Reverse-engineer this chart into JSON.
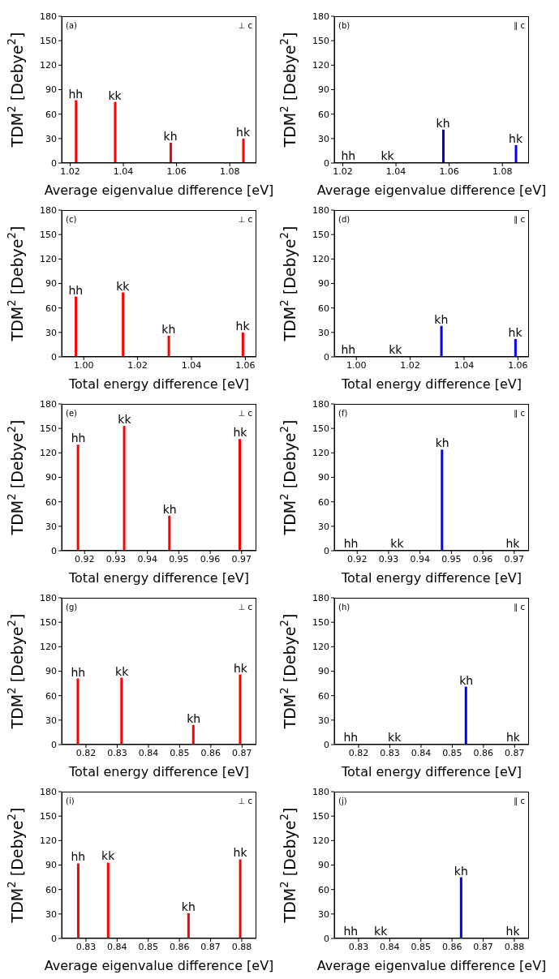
{
  "chart_data": [
    {
      "type": "bar",
      "x": [
        1.0221,
        1.0368,
        1.0577,
        1.085
      ],
      "values": [
        77,
        75,
        25,
        30
      ],
      "color": "#ff0000",
      "xlim": [
        1.0168,
        1.09
      ],
      "xticks": [
        {
          "value": 1.02,
          "label": "1.02"
        },
        {
          "value": 1.04,
          "label": "1.04"
        },
        {
          "value": 1.06,
          "label": "1.06"
        },
        {
          "value": 1.08,
          "label": "1.08"
        }
      ],
      "ylim": [
        0,
        180
      ],
      "yticks": [
        0,
        30,
        60,
        90,
        120,
        150,
        180
      ],
      "xlabel": "Average eigenvalue difference [eV]",
      "ylabel": "TDM$^{2}$ [Debye$^{2}$]",
      "annotations": [
        "(a)",
        "⊥ c",
        {
          "text": "hh",
          "x": 1.0221,
          "y": 77
        },
        {
          "text": "kk",
          "x": 1.0368,
          "y": 75
        },
        {
          "text": "kh",
          "x": 1.0577,
          "y": 25
        },
        {
          "text": "hk",
          "x": 1.085,
          "y": 30
        }
      ]
    },
    {
      "type": "bar",
      "x": [
        1.0221,
        1.0368,
        1.0577,
        1.085
      ],
      "values": [
        1,
        1,
        41,
        22
      ],
      "color": "#0000ff",
      "xlim": [
        1.0168,
        1.09
      ],
      "xticks": [
        {
          "value": 1.02,
          "label": "1.02"
        },
        {
          "value": 1.04,
          "label": "1.04"
        },
        {
          "value": 1.06,
          "label": "1.06"
        },
        {
          "value": 1.08,
          "label": "1.08"
        }
      ],
      "ylim": [
        0,
        180
      ],
      "yticks": [
        0,
        30,
        60,
        90,
        120,
        150,
        180
      ],
      "xlabel": "Average eigenvalue difference [eV]",
      "ylabel": "TDM$^{2}$ [Debye$^{2}$]",
      "annotations": [
        "(b)",
        "∥ c",
        {
          "text": "hh",
          "x": 1.0221,
          "y": 1
        },
        {
          "text": "kk",
          "x": 1.0368,
          "y": 1
        },
        {
          "text": "kh",
          "x": 1.0577,
          "y": 41
        },
        {
          "text": "hk",
          "x": 1.085,
          "y": 22
        }
      ]
    },
    {
      "type": "bar",
      "x": [
        0.997,
        1.0145,
        1.0315,
        1.059
      ],
      "values": [
        74,
        79,
        26,
        30
      ],
      "color": "#ff0000",
      "xlim": [
        0.9918,
        1.0641
      ],
      "xticks": [
        {
          "value": 1.0,
          "label": "1.00"
        },
        {
          "value": 1.02,
          "label": "1.02"
        },
        {
          "value": 1.04,
          "label": "1.04"
        },
        {
          "value": 1.06,
          "label": "1.06"
        }
      ],
      "ylim": [
        0,
        180
      ],
      "yticks": [
        0,
        30,
        60,
        90,
        120,
        150,
        180
      ],
      "xlabel": "Total energy difference [eV]",
      "ylabel": "TDM$^{2}$ [Debye$^{2}$]",
      "annotations": [
        "(c)",
        "⊥ c",
        {
          "text": "hh",
          "x": 0.997,
          "y": 74
        },
        {
          "text": "kk",
          "x": 1.0145,
          "y": 79
        },
        {
          "text": "kh",
          "x": 1.0315,
          "y": 26
        },
        {
          "text": "hk",
          "x": 1.059,
          "y": 30
        }
      ]
    },
    {
      "type": "bar",
      "x": [
        0.997,
        1.0145,
        1.0315,
        1.059
      ],
      "values": [
        1,
        1,
        38,
        22
      ],
      "color": "#0000ff",
      "xlim": [
        0.9918,
        1.0641
      ],
      "xticks": [
        {
          "value": 1.0,
          "label": "1.00"
        },
        {
          "value": 1.02,
          "label": "1.02"
        },
        {
          "value": 1.04,
          "label": "1.04"
        },
        {
          "value": 1.06,
          "label": "1.06"
        }
      ],
      "ylim": [
        0,
        180
      ],
      "yticks": [
        0,
        30,
        60,
        90,
        120,
        150,
        180
      ],
      "xlabel": "Total energy difference [eV]",
      "ylabel": "TDM$^{2}$ [Debye$^{2}$]",
      "annotations": [
        "(d)",
        "∥ c",
        {
          "text": "hh",
          "x": 0.997,
          "y": 1
        },
        {
          "text": "kk",
          "x": 1.0145,
          "y": 1
        },
        {
          "text": "kh",
          "x": 1.0315,
          "y": 38
        },
        {
          "text": "hk",
          "x": 1.059,
          "y": 22
        }
      ]
    },
    {
      "type": "bar",
      "x": [
        0.918,
        0.9327,
        0.9471,
        0.9695
      ],
      "values": [
        130,
        153,
        43,
        137
      ],
      "color": "#ff0000",
      "xlim": [
        0.9127,
        0.9747
      ],
      "xticks": [
        {
          "value": 0.92,
          "label": "0.92"
        },
        {
          "value": 0.93,
          "label": "0.93"
        },
        {
          "value": 0.94,
          "label": "0.94"
        },
        {
          "value": 0.95,
          "label": "0.95"
        },
        {
          "value": 0.96,
          "label": "0.96"
        },
        {
          "value": 0.97,
          "label": "0.97"
        }
      ],
      "ylim": [
        0,
        180
      ],
      "yticks": [
        0,
        30,
        60,
        90,
        120,
        150,
        180
      ],
      "xlabel": "Total energy difference [eV]",
      "ylabel": "TDM$^{2}$ [Debye$^{2}$]",
      "annotations": [
        "(e)",
        "⊥ c",
        {
          "text": "hh",
          "x": 0.918,
          "y": 130
        },
        {
          "text": "kk",
          "x": 0.9327,
          "y": 153
        },
        {
          "text": "kh",
          "x": 0.9471,
          "y": 43
        },
        {
          "text": "hk",
          "x": 0.9695,
          "y": 137
        }
      ]
    },
    {
      "type": "bar",
      "x": [
        0.918,
        0.9327,
        0.9471,
        0.9695
      ],
      "values": [
        1,
        1,
        124,
        1
      ],
      "color": "#0000ff",
      "xlim": [
        0.9127,
        0.9747
      ],
      "xticks": [
        {
          "value": 0.92,
          "label": "0.92"
        },
        {
          "value": 0.93,
          "label": "0.93"
        },
        {
          "value": 0.94,
          "label": "0.94"
        },
        {
          "value": 0.95,
          "label": "0.95"
        },
        {
          "value": 0.96,
          "label": "0.96"
        },
        {
          "value": 0.97,
          "label": "0.97"
        }
      ],
      "ylim": [
        0,
        180
      ],
      "yticks": [
        0,
        30,
        60,
        90,
        120,
        150,
        180
      ],
      "xlabel": "Total energy difference [eV]",
      "ylabel": "TDM$^{2}$ [Debye$^{2}$]",
      "annotations": [
        "(f)",
        "∥ c",
        {
          "text": "hh",
          "x": 0.918,
          "y": 1
        },
        {
          "text": "kk",
          "x": 0.9327,
          "y": 1
        },
        {
          "text": "kh",
          "x": 0.9471,
          "y": 124
        },
        {
          "text": "hk",
          "x": 0.9695,
          "y": 1
        }
      ]
    },
    {
      "type": "bar",
      "x": [
        0.8175,
        0.8315,
        0.8545,
        0.8695
      ],
      "values": [
        81,
        82,
        24,
        86
      ],
      "color": "#ff0000",
      "xlim": [
        0.8122,
        0.8746
      ],
      "xticks": [
        {
          "value": 0.82,
          "label": "0.82"
        },
        {
          "value": 0.83,
          "label": "0.83"
        },
        {
          "value": 0.84,
          "label": "0.84"
        },
        {
          "value": 0.85,
          "label": "0.85"
        },
        {
          "value": 0.86,
          "label": "0.86"
        },
        {
          "value": 0.87,
          "label": "0.87"
        }
      ],
      "ylim": [
        0,
        180
      ],
      "yticks": [
        0,
        30,
        60,
        90,
        120,
        150,
        180
      ],
      "xlabel": "Total energy difference [eV]",
      "ylabel": "TDM$^{2}$ [Debye$^{2}$]",
      "annotations": [
        "(g)",
        "⊥ c",
        {
          "text": "hh",
          "x": 0.8175,
          "y": 81
        },
        {
          "text": "kk",
          "x": 0.8315,
          "y": 82
        },
        {
          "text": "kh",
          "x": 0.8545,
          "y": 24
        },
        {
          "text": "hk",
          "x": 0.8695,
          "y": 86
        }
      ]
    },
    {
      "type": "bar",
      "x": [
        0.8175,
        0.8315,
        0.8545,
        0.8695
      ],
      "values": [
        1,
        1,
        71,
        1
      ],
      "color": "#0000ff",
      "xlim": [
        0.8122,
        0.8746
      ],
      "xticks": [
        {
          "value": 0.82,
          "label": "0.82"
        },
        {
          "value": 0.83,
          "label": "0.83"
        },
        {
          "value": 0.84,
          "label": "0.84"
        },
        {
          "value": 0.85,
          "label": "0.85"
        },
        {
          "value": 0.86,
          "label": "0.86"
        },
        {
          "value": 0.87,
          "label": "0.87"
        }
      ],
      "ylim": [
        0,
        180
      ],
      "yticks": [
        0,
        30,
        60,
        90,
        120,
        150,
        180
      ],
      "xlabel": "Total energy difference [eV]",
      "ylabel": "TDM$^{2}$ [Debye$^{2}$]",
      "annotations": [
        "(h)",
        "∥ c",
        {
          "text": "hh",
          "x": 0.8175,
          "y": 1
        },
        {
          "text": "kk",
          "x": 0.8315,
          "y": 1
        },
        {
          "text": "kh",
          "x": 0.8545,
          "y": 71
        },
        {
          "text": "hk",
          "x": 0.8695,
          "y": 1
        }
      ]
    },
    {
      "type": "bar",
      "x": [
        0.8275,
        0.8371,
        0.8629,
        0.8795
      ],
      "values": [
        92,
        93,
        31,
        97
      ],
      "color": "#ff0000",
      "xlim": [
        0.8222,
        0.8847
      ],
      "xticks": [
        {
          "value": 0.83,
          "label": "0.83"
        },
        {
          "value": 0.84,
          "label": "0.84"
        },
        {
          "value": 0.85,
          "label": "0.85"
        },
        {
          "value": 0.86,
          "label": "0.86"
        },
        {
          "value": 0.87,
          "label": "0.87"
        },
        {
          "value": 0.88,
          "label": "0.88"
        }
      ],
      "ylim": [
        0,
        180
      ],
      "yticks": [
        0,
        30,
        60,
        90,
        120,
        150,
        180
      ],
      "xlabel": "Average eigenvalue difference [eV]",
      "ylabel": "TDM$^{2}$ [Debye$^{2}$]",
      "annotations": [
        "(i)",
        "⊥ c",
        {
          "text": "hh",
          "x": 0.8275,
          "y": 92
        },
        {
          "text": "kk",
          "x": 0.8371,
          "y": 93
        },
        {
          "text": "kh",
          "x": 0.8629,
          "y": 31
        },
        {
          "text": "hk",
          "x": 0.8795,
          "y": 97
        }
      ]
    },
    {
      "type": "bar",
      "x": [
        0.8275,
        0.8371,
        0.8629,
        0.8795
      ],
      "values": [
        1,
        1,
        75,
        1
      ],
      "color": "#0000ff",
      "xlim": [
        0.8222,
        0.8847
      ],
      "xticks": [
        {
          "value": 0.83,
          "label": "0.83"
        },
        {
          "value": 0.84,
          "label": "0.84"
        },
        {
          "value": 0.85,
          "label": "0.85"
        },
        {
          "value": 0.86,
          "label": "0.86"
        },
        {
          "value": 0.87,
          "label": "0.87"
        },
        {
          "value": 0.88,
          "label": "0.88"
        }
      ],
      "ylim": [
        0,
        180
      ],
      "yticks": [
        0,
        30,
        60,
        90,
        120,
        150,
        180
      ],
      "xlabel": "Average eigenvalue difference [eV]",
      "ylabel": "TDM$^{2}$ [Debye$^{2}$]",
      "annotations": [
        "(j)",
        "∥ c",
        {
          "text": "hh",
          "x": 0.8275,
          "y": 1
        },
        {
          "text": "kk",
          "x": 0.8371,
          "y": 1
        },
        {
          "text": "kh",
          "x": 0.8629,
          "y": 75
        },
        {
          "text": "hk",
          "x": 0.8795,
          "y": 1
        }
      ]
    }
  ]
}
